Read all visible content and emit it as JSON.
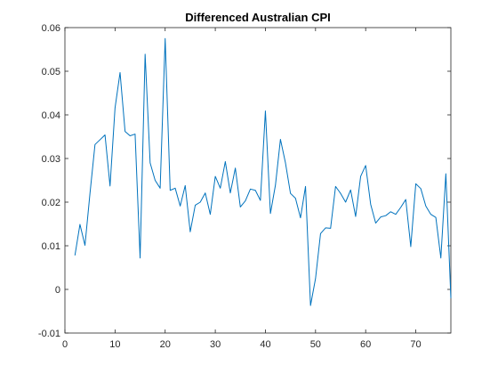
{
  "chart_data": {
    "type": "line",
    "title": "Differenced Australian CPI",
    "xlabel": "",
    "ylabel": "",
    "xlim": [
      0,
      77
    ],
    "ylim": [
      -0.01,
      0.06
    ],
    "grid": false,
    "legend": "none",
    "line_color": "#0072BD",
    "xticks": [
      0,
      10,
      20,
      30,
      40,
      50,
      60,
      70
    ],
    "xtick_labels": [
      "0",
      "10",
      "20",
      "30",
      "40",
      "50",
      "60",
      "70"
    ],
    "yticks": [
      -0.01,
      0,
      0.01,
      0.02,
      0.03,
      0.04,
      0.05,
      0.06
    ],
    "ytick_labels": [
      "-0.01",
      "0",
      "0.01",
      "0.02",
      "0.03",
      "0.04",
      "0.05",
      "0.06"
    ],
    "series": [
      {
        "x": [
          2,
          3,
          4,
          5,
          6,
          7,
          8,
          9,
          10,
          11,
          12,
          13,
          14,
          15,
          16,
          17,
          18,
          19,
          20,
          21,
          22,
          23,
          24,
          25,
          26,
          27,
          28,
          29,
          30,
          31,
          32,
          33,
          34,
          35,
          36,
          37,
          38,
          39,
          40,
          41,
          42,
          43,
          44,
          45,
          46,
          47,
          48,
          49,
          50,
          51,
          52,
          53,
          54,
          55,
          56,
          57,
          58,
          59,
          60,
          61,
          62,
          63,
          64,
          65,
          66,
          67,
          68,
          69,
          70,
          71,
          72,
          73,
          74,
          75,
          76,
          77
        ],
        "values": [
          0.0078,
          0.0149,
          0.0101,
          0.022,
          0.0332,
          0.0343,
          0.0354,
          0.0237,
          0.0416,
          0.0497,
          0.0362,
          0.0352,
          0.0356,
          0.0072,
          0.0539,
          0.029,
          0.025,
          0.0232,
          0.0575,
          0.0227,
          0.0232,
          0.0191,
          0.0238,
          0.0132,
          0.0193,
          0.02,
          0.0221,
          0.0172,
          0.0259,
          0.0232,
          0.0293,
          0.0221,
          0.0278,
          0.0189,
          0.0203,
          0.023,
          0.0227,
          0.0204,
          0.0409,
          0.0174,
          0.0239,
          0.0344,
          0.029,
          0.022,
          0.0209,
          0.0164,
          0.0236,
          -0.0037,
          0.0025,
          0.0128,
          0.0141,
          0.014,
          0.0236,
          0.022,
          0.02,
          0.0228,
          0.0167,
          0.0259,
          0.0284,
          0.0195,
          0.0152,
          0.0166,
          0.0169,
          0.0178,
          0.0172,
          0.0188,
          0.0206,
          0.0098,
          0.0242,
          0.0231,
          0.0191,
          0.0172,
          0.0165,
          0.0072,
          0.0265,
          -0.002
        ]
      }
    ]
  }
}
